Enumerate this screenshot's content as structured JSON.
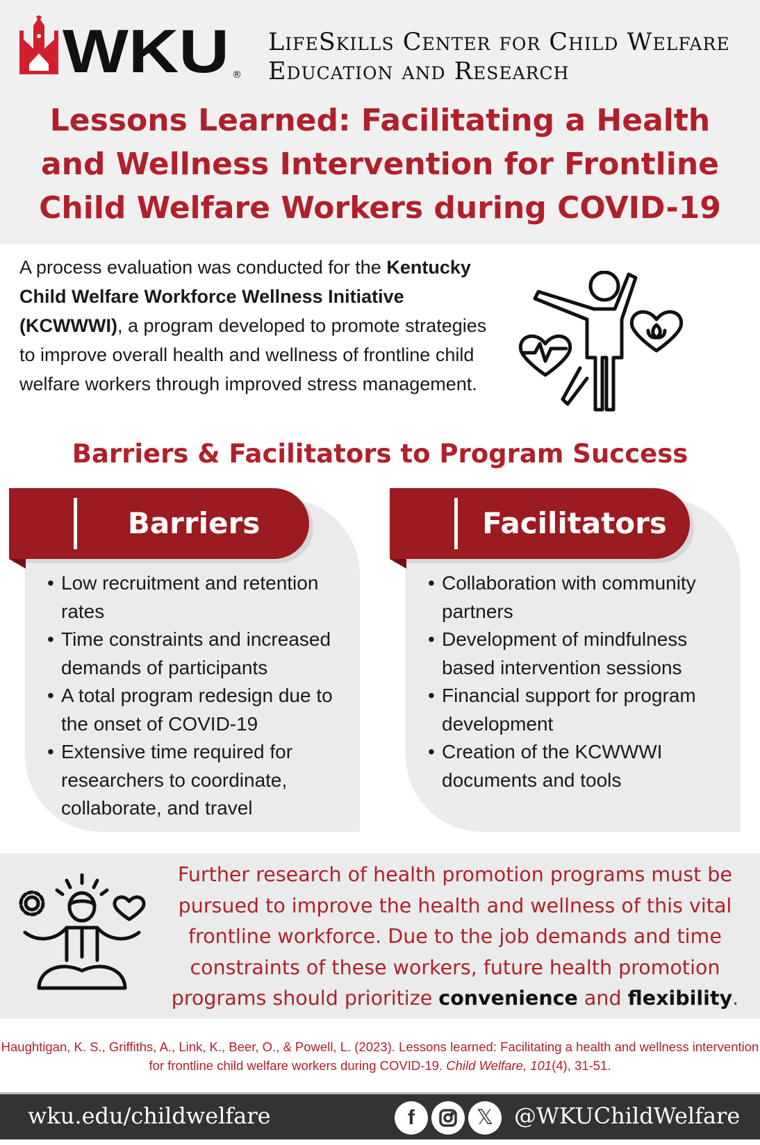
{
  "header": {
    "logo_text": "WKU",
    "center_name_line1": "LifeSkills Center for Child Welfare",
    "center_name_line2": "Education and Research",
    "title": "Lessons Learned: Facilitating a Health and Wellness Intervention for Frontline Child Welfare Workers during COVID-19"
  },
  "intro": {
    "before": "A process evaluation was conducted for the ",
    "bold": "Kentucky Child Welfare Workforce Wellness Initiative (KCWWWI)",
    "after": ", a program developed to promote strategies to improve overall health and wellness of frontline child welfare workers through improved stress management."
  },
  "section_title": "Barriers & Facilitators to Program Success",
  "barriers": {
    "label": "Barriers",
    "items": [
      "Low recruitment and retention rates",
      "Time constraints and increased demands of participants",
      "A total program redesign due to the onset of COVID-19",
      "Extensive time required for researchers to coordinate, collaborate, and travel"
    ]
  },
  "facilitators": {
    "label": "Facilitators",
    "items": [
      "Collaboration with community partners",
      "Development of mindfulness based intervention sessions",
      "Financial support for program development",
      "Creation of the KCWWWI documents and tools"
    ]
  },
  "conclusion": {
    "text": "Further research of health promotion programs must be pursued to improve the health and wellness of this vital frontline workforce. Due to the job demands and time constraints of these workers, future health promotion programs should prioritize ",
    "bold1": "convenience",
    "and": " and ",
    "bold2": "flexibility",
    "end": "."
  },
  "citation": {
    "text": "Haughtigan, K. S., Griffiths, A., Link, K., Beer, O., & Powell, L. (2023). Lessons learned: Facilitating a health and wellness intervention for frontline child welfare workers during COVID-19. ",
    "journal": "Child Welfare, 101",
    "rest": "(4), 31-51."
  },
  "footer": {
    "url": "wku.edu/childwelfare",
    "handle": "@WKUChildWelfare",
    "icons": [
      "facebook-icon",
      "instagram-icon",
      "x-icon"
    ]
  },
  "colors": {
    "accent": "#b1202a",
    "banner": "#9b1b20",
    "footer": "#333333",
    "panel": "#ebebeb"
  }
}
